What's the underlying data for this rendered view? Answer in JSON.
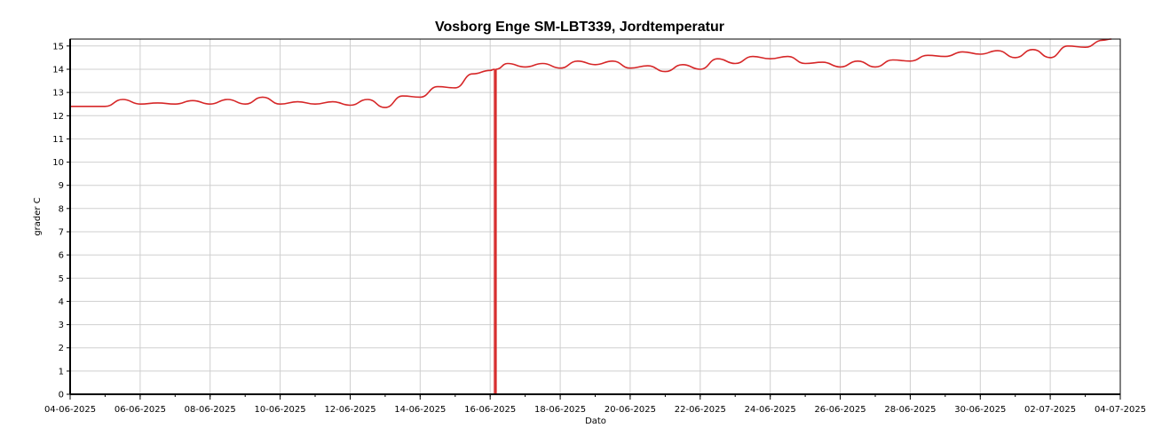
{
  "chart_data": {
    "type": "line",
    "title": "Vosborg Enge SM-LBT339, Jordtemperatur",
    "xlabel": "Dato",
    "ylabel": "grader C",
    "grid": true,
    "legend": "none",
    "xlim": [
      "04-06-2025",
      "04-07-2025"
    ],
    "ylim": [
      0,
      15.3
    ],
    "x_ticks": [
      "04-06-2025",
      "06-06-2025",
      "08-06-2025",
      "10-06-2025",
      "12-06-2025",
      "14-06-2025",
      "16-06-2025",
      "18-06-2025",
      "20-06-2025",
      "22-06-2025",
      "24-06-2025",
      "26-06-2025",
      "28-06-2025",
      "30-06-2025",
      "02-07-2025",
      "04-07-2025"
    ],
    "y_ticks": [
      0,
      1,
      2,
      3,
      4,
      5,
      6,
      7,
      8,
      9,
      10,
      11,
      12,
      13,
      14,
      15
    ],
    "series": [
      {
        "color": "#d62728",
        "points": [
          [
            "04-06-2025 00:00",
            12.4
          ],
          [
            "04-06-2025 12:00",
            12.4
          ],
          [
            "05-06-2025 00:00",
            12.4
          ],
          [
            "05-06-2025 12:00",
            12.7
          ],
          [
            "06-06-2025 00:00",
            12.5
          ],
          [
            "06-06-2025 12:00",
            12.55
          ],
          [
            "07-06-2025 00:00",
            12.5
          ],
          [
            "07-06-2025 12:00",
            12.65
          ],
          [
            "08-06-2025 00:00",
            12.5
          ],
          [
            "08-06-2025 12:00",
            12.7
          ],
          [
            "09-06-2025 00:00",
            12.5
          ],
          [
            "09-06-2025 12:00",
            12.8
          ],
          [
            "10-06-2025 00:00",
            12.5
          ],
          [
            "10-06-2025 12:00",
            12.6
          ],
          [
            "11-06-2025 00:00",
            12.5
          ],
          [
            "11-06-2025 12:00",
            12.6
          ],
          [
            "12-06-2025 00:00",
            12.45
          ],
          [
            "12-06-2025 12:00",
            12.7
          ],
          [
            "13-06-2025 00:00",
            12.35
          ],
          [
            "13-06-2025 12:00",
            12.85
          ],
          [
            "14-06-2025 00:00",
            12.8
          ],
          [
            "14-06-2025 12:00",
            13.25
          ],
          [
            "15-06-2025 00:00",
            13.2
          ],
          [
            "15-06-2025 12:00",
            13.8
          ],
          [
            "16-06-2025 00:00",
            13.95
          ],
          [
            "16-06-2025 03:00",
            14.0
          ],
          [
            "16-06-2025 03:00",
            0
          ],
          [
            "16-06-2025 04:00",
            0
          ],
          [
            "16-06-2025 04:00",
            14.0
          ],
          [
            "16-06-2025 12:00",
            14.25
          ],
          [
            "17-06-2025 00:00",
            14.1
          ],
          [
            "17-06-2025 12:00",
            14.25
          ],
          [
            "18-06-2025 00:00",
            14.05
          ],
          [
            "18-06-2025 12:00",
            14.35
          ],
          [
            "19-06-2025 00:00",
            14.2
          ],
          [
            "19-06-2025 12:00",
            14.35
          ],
          [
            "20-06-2025 00:00",
            14.05
          ],
          [
            "20-06-2025 12:00",
            14.15
          ],
          [
            "21-06-2025 00:00",
            13.9
          ],
          [
            "21-06-2025 12:00",
            14.2
          ],
          [
            "22-06-2025 00:00",
            14.0
          ],
          [
            "22-06-2025 12:00",
            14.45
          ],
          [
            "23-06-2025 00:00",
            14.25
          ],
          [
            "23-06-2025 12:00",
            14.55
          ],
          [
            "24-06-2025 00:00",
            14.45
          ],
          [
            "24-06-2025 12:00",
            14.55
          ],
          [
            "25-06-2025 00:00",
            14.25
          ],
          [
            "25-06-2025 12:00",
            14.3
          ],
          [
            "26-06-2025 00:00",
            14.1
          ],
          [
            "26-06-2025 12:00",
            14.35
          ],
          [
            "27-06-2025 00:00",
            14.1
          ],
          [
            "27-06-2025 12:00",
            14.4
          ],
          [
            "28-06-2025 00:00",
            14.35
          ],
          [
            "28-06-2025 12:00",
            14.6
          ],
          [
            "29-06-2025 00:00",
            14.55
          ],
          [
            "29-06-2025 12:00",
            14.75
          ],
          [
            "30-06-2025 00:00",
            14.65
          ],
          [
            "30-06-2025 12:00",
            14.8
          ],
          [
            "01-07-2025 00:00",
            14.5
          ],
          [
            "01-07-2025 12:00",
            14.85
          ],
          [
            "02-07-2025 00:00",
            14.5
          ],
          [
            "02-07-2025 12:00",
            15.0
          ],
          [
            "03-07-2025 00:00",
            14.95
          ],
          [
            "03-07-2025 12:00",
            15.25
          ],
          [
            "03-07-2025 18:00",
            15.3
          ]
        ]
      }
    ]
  }
}
